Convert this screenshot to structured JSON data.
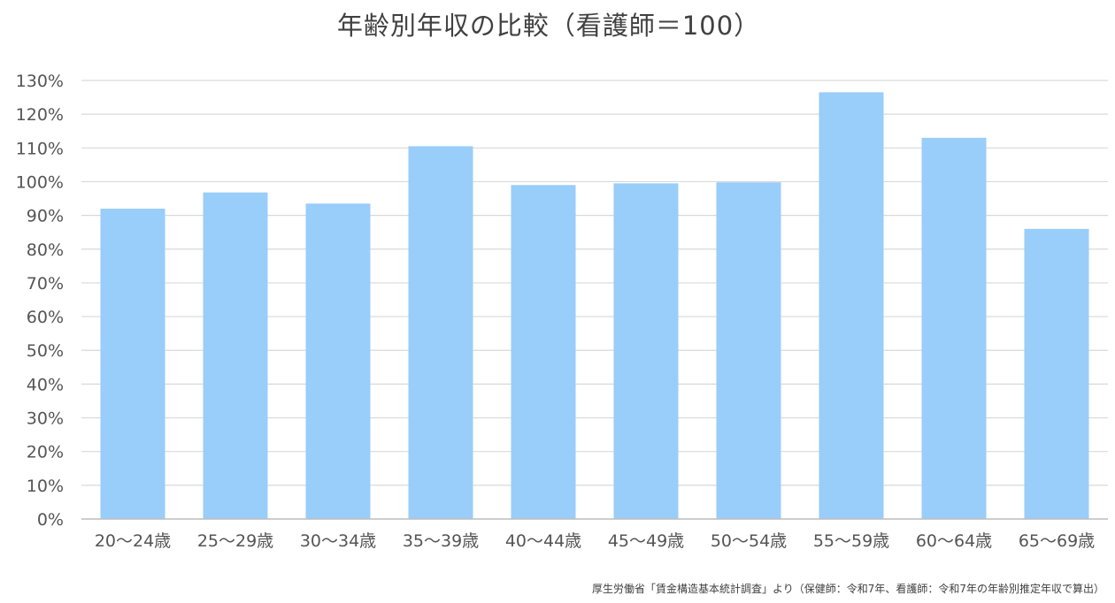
{
  "chart_data": {
    "type": "bar",
    "title": "年齢別年収の比較（看護師＝100）",
    "categories": [
      "20～24歳",
      "25～29歳",
      "30～34歳",
      "35～39歳",
      "40～44歳",
      "45～49歳",
      "50～54歳",
      "55～59歳",
      "60～64歳",
      "65～69歳"
    ],
    "values": [
      92,
      96.8,
      93.5,
      110.5,
      99,
      99.5,
      99.8,
      126.5,
      113,
      86
    ],
    "ylim": [
      0,
      130
    ],
    "ytick_step": 10,
    "ytick_suffix": "%",
    "grid": true,
    "bar_color": "#99cdfa",
    "source": "厚生労働省「賃金構造基本統計調査」より（保健師：令和7年、看護師：令和7年の年齢別推定年収で算出）"
  }
}
